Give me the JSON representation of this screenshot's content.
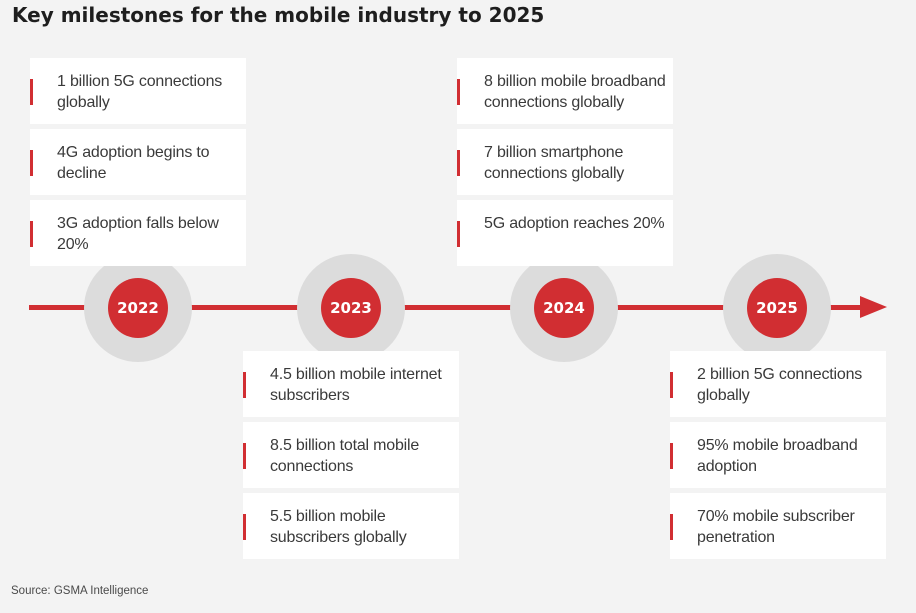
{
  "title": "Key milestones for the mobile industry to 2025",
  "source": "Source: GSMA Intelligence",
  "colors": {
    "accent": "#d12e32",
    "halo": "#dcdcdc",
    "background": "#f3f3f3",
    "card": "#ffffff"
  },
  "milestones": [
    {
      "year": "2022",
      "items": [
        "1 billion 5G connections globally",
        "4G adoption begins to decline",
        "3G adoption falls below 20%"
      ]
    },
    {
      "year": "2023",
      "items": [
        "4.5 billion mobile internet subscribers",
        "8.5 billion total mobile connections",
        "5.5 billion mobile subscribers globally"
      ]
    },
    {
      "year": "2024",
      "items": [
        "8 billion mobile broadband connections globally",
        "7 billion smartphone connections globally",
        "5G adoption reaches 20%"
      ]
    },
    {
      "year": "2025",
      "items": [
        "2 billion 5G connections globally",
        "95% mobile broadband adoption",
        "70% mobile subscriber penetration"
      ]
    }
  ]
}
